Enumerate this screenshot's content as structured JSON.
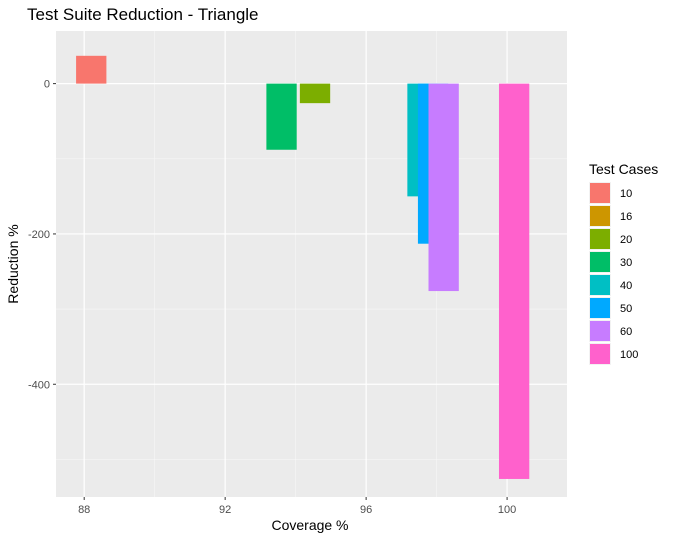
{
  "chart_data": {
    "type": "bar",
    "title": "Test Suite Reduction - Triangle",
    "xlabel": "Coverage %",
    "ylabel": "Reduction %",
    "xlim": [
      87.2,
      101.7
    ],
    "ylim": [
      -550,
      70
    ],
    "x_ticks": [
      88,
      92,
      96,
      100
    ],
    "y_ticks": [
      0,
      -200,
      -400
    ],
    "bar_width": 0.86,
    "grid": true,
    "legend_position": "right",
    "legend_title": "Test Cases",
    "series": [
      {
        "name": "10",
        "color": "#F8766D",
        "x": 88.2,
        "value": 37
      },
      {
        "name": "16",
        "color": "#CD9600",
        "x": null,
        "value": null
      },
      {
        "name": "20",
        "color": "#7CAE00",
        "x": 94.55,
        "value": -26
      },
      {
        "name": "30",
        "color": "#00BE67",
        "x": 93.6,
        "value": -88
      },
      {
        "name": "40",
        "color": "#00BFC4",
        "x": 97.6,
        "value": -150
      },
      {
        "name": "50",
        "color": "#00A9FF",
        "x": 97.9,
        "value": -213
      },
      {
        "name": "60",
        "color": "#C77CFF",
        "x": 98.2,
        "value": -276
      },
      {
        "name": "100",
        "color": "#FF61CC",
        "x": 100.2,
        "value": -526
      }
    ]
  }
}
